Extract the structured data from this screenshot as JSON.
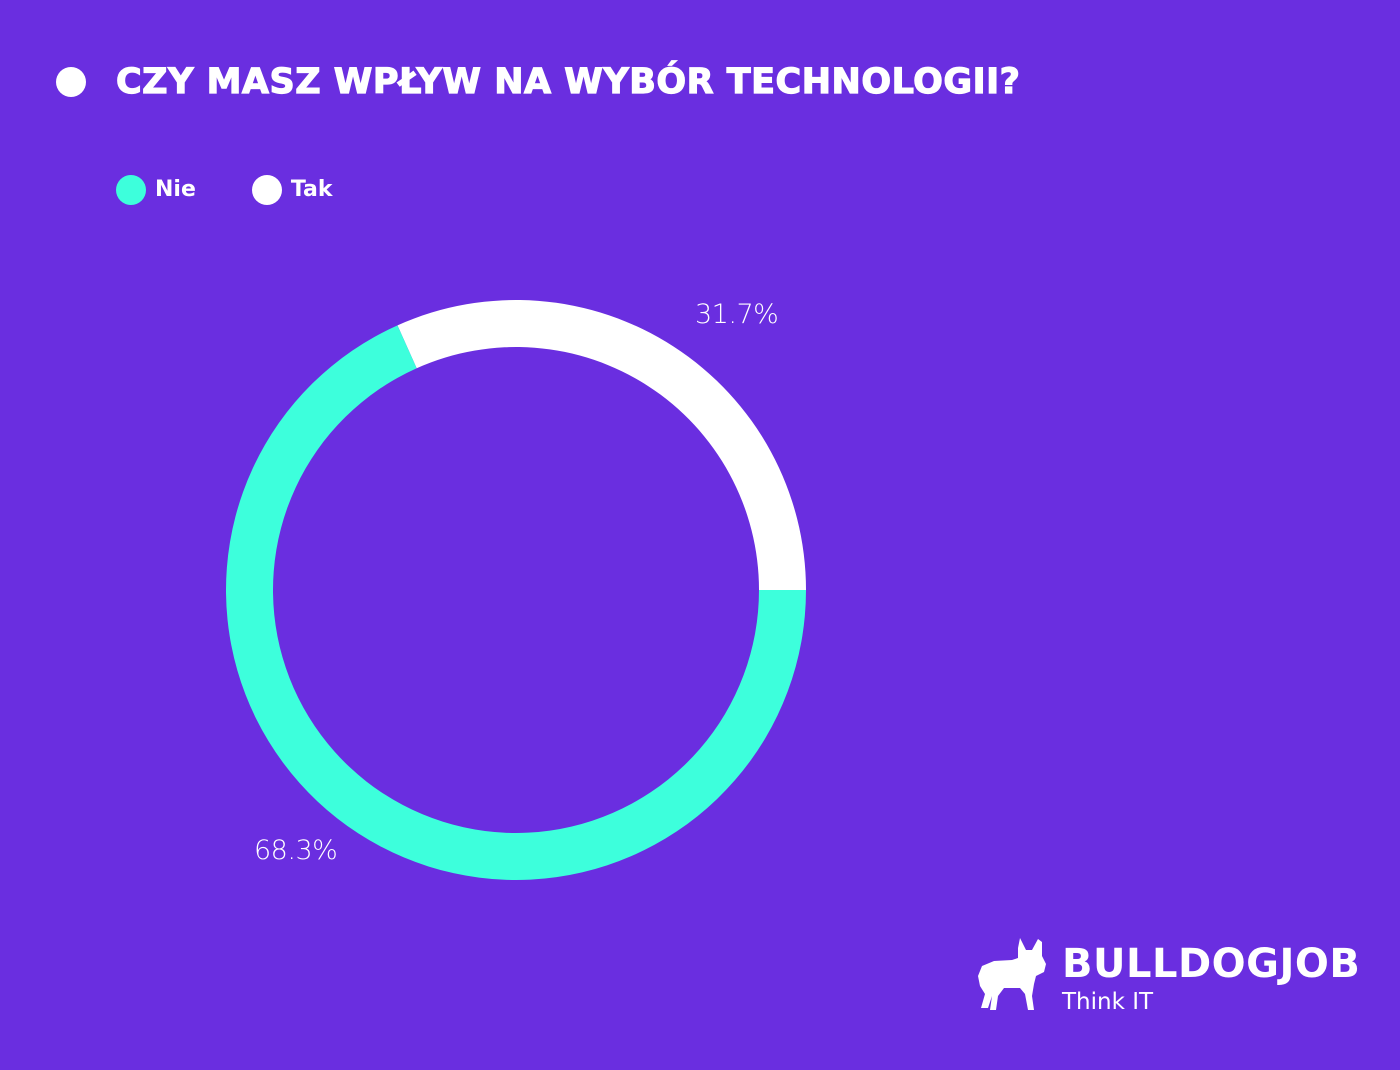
{
  "title": "CZY MASZ WPŁYW NA WYBÓR TECHNOLOGII?",
  "colors": {
    "background": "#6a2ee0",
    "nie": "#3dffdc",
    "tak": "#ffffff",
    "text": "#ffffff"
  },
  "legend": [
    {
      "label": "Nie",
      "color": "#3dffdc"
    },
    {
      "label": "Tak",
      "color": "#ffffff"
    }
  ],
  "labels": {
    "tak_pct": "31.7%",
    "nie_pct": "68.3%"
  },
  "logo": {
    "icon": "bulldog-icon",
    "name": "BULLDOGJOB",
    "tagline": "Think IT"
  },
  "chart_data": {
    "type": "pie",
    "variant": "donut",
    "title": "CZY MASZ WPŁYW NA WYBÓR TECHNOLOGII?",
    "categories": [
      "Nie",
      "Tak"
    ],
    "values": [
      68.3,
      31.7
    ],
    "unit": "%",
    "colors": [
      "#3dffdc",
      "#ffffff"
    ],
    "data_labels": [
      "68.3%",
      "31.7%"
    ],
    "legend_position": "top-left",
    "start_angle_deg": 0,
    "direction": "counter-clockwise for Tak from 3 o'clock"
  }
}
